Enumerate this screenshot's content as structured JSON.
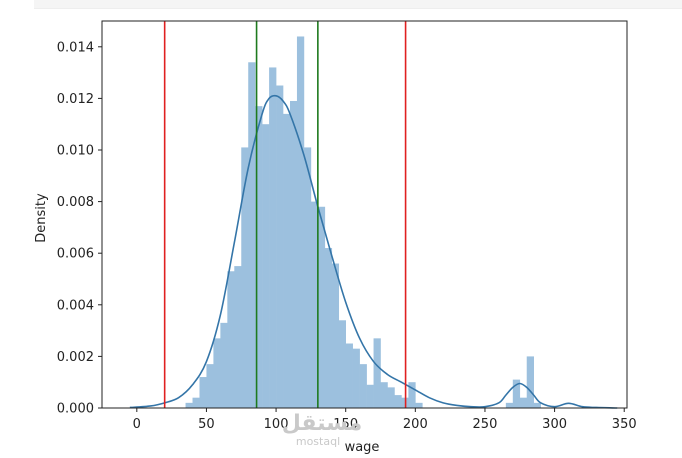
{
  "chart_data": {
    "type": "histogram",
    "xlabel": "wage",
    "ylabel": "Density",
    "xlim": [
      -25,
      352
    ],
    "ylim": [
      0,
      0.015
    ],
    "xticks": [
      0,
      50,
      100,
      150,
      200,
      250,
      300,
      350
    ],
    "xtick_labels": [
      "0",
      "50",
      "100",
      "150",
      "200",
      "250",
      "300",
      "350"
    ],
    "yticks": [
      0,
      0.002,
      0.004,
      0.006,
      0.008,
      0.01,
      0.012,
      0.014
    ],
    "ytick_labels": [
      "0.000",
      "0.002",
      "0.004",
      "0.006",
      "0.008",
      "0.010",
      "0.012",
      "0.014"
    ],
    "bin_width": 5,
    "bins": [
      {
        "x0": 35,
        "value": 0.0002
      },
      {
        "x0": 40,
        "value": 0.0004
      },
      {
        "x0": 45,
        "value": 0.0012
      },
      {
        "x0": 50,
        "value": 0.0017
      },
      {
        "x0": 55,
        "value": 0.0027
      },
      {
        "x0": 60,
        "value": 0.0033
      },
      {
        "x0": 65,
        "value": 0.0053
      },
      {
        "x0": 70,
        "value": 0.0055
      },
      {
        "x0": 75,
        "value": 0.0101
      },
      {
        "x0": 80,
        "value": 0.0134
      },
      {
        "x0": 85,
        "value": 0.0117
      },
      {
        "x0": 90,
        "value": 0.011
      },
      {
        "x0": 95,
        "value": 0.0132
      },
      {
        "x0": 100,
        "value": 0.0125
      },
      {
        "x0": 105,
        "value": 0.0114
      },
      {
        "x0": 110,
        "value": 0.0119
      },
      {
        "x0": 115,
        "value": 0.0144
      },
      {
        "x0": 120,
        "value": 0.0101
      },
      {
        "x0": 125,
        "value": 0.008
      },
      {
        "x0": 130,
        "value": 0.0078
      },
      {
        "x0": 135,
        "value": 0.0062
      },
      {
        "x0": 140,
        "value": 0.0056
      },
      {
        "x0": 145,
        "value": 0.0034
      },
      {
        "x0": 150,
        "value": 0.0025
      },
      {
        "x0": 155,
        "value": 0.0023
      },
      {
        "x0": 160,
        "value": 0.0017
      },
      {
        "x0": 165,
        "value": 0.0009
      },
      {
        "x0": 170,
        "value": 0.0027
      },
      {
        "x0": 175,
        "value": 0.001
      },
      {
        "x0": 180,
        "value": 0.0008
      },
      {
        "x0": 185,
        "value": 0.0005
      },
      {
        "x0": 190,
        "value": 0.0004
      },
      {
        "x0": 195,
        "value": 0.001
      },
      {
        "x0": 200,
        "value": 0.0002
      },
      {
        "x0": 265,
        "value": 0.0002
      },
      {
        "x0": 270,
        "value": 0.0011
      },
      {
        "x0": 275,
        "value": 0.0004
      },
      {
        "x0": 280,
        "value": 0.002
      },
      {
        "x0": 285,
        "value": 0.0002
      }
    ],
    "kde": {
      "x": [
        -5,
        10,
        20,
        30,
        40,
        50,
        60,
        70,
        80,
        90,
        95,
        100,
        105,
        110,
        120,
        130,
        140,
        150,
        160,
        170,
        180,
        190,
        200,
        210,
        220,
        230,
        240,
        250,
        260,
        265,
        270,
        275,
        280,
        285,
        290,
        300,
        310,
        320,
        330,
        345
      ],
      "y": [
        2e-05,
        8e-05,
        0.0002,
        0.0004,
        0.0009,
        0.0018,
        0.0036,
        0.0064,
        0.0093,
        0.0114,
        0.012,
        0.0121,
        0.0119,
        0.0114,
        0.0098,
        0.0078,
        0.0059,
        0.0041,
        0.0027,
        0.0018,
        0.0013,
        0.001,
        0.0007,
        0.0004,
        0.0002,
        0.0001,
        5e-05,
        5e-05,
        0.0002,
        0.0005,
        0.0008,
        0.00095,
        0.0008,
        0.0005,
        0.0002,
        5e-05,
        0.00018,
        5e-05,
        2e-05,
        0.0
      ],
      "color": "#3475a8"
    },
    "bar_color": "#9cc0de",
    "vlines": [
      {
        "x": 20,
        "color": "#e02020"
      },
      {
        "x": 193,
        "color": "#e02020"
      },
      {
        "x": 86,
        "color": "#1e7a1e"
      },
      {
        "x": 130,
        "color": "#1e7a1e"
      }
    ],
    "grid": false,
    "legend": "none"
  },
  "watermark": {
    "text_arabic": "مستقل",
    "text_latin": "mostaql"
  }
}
